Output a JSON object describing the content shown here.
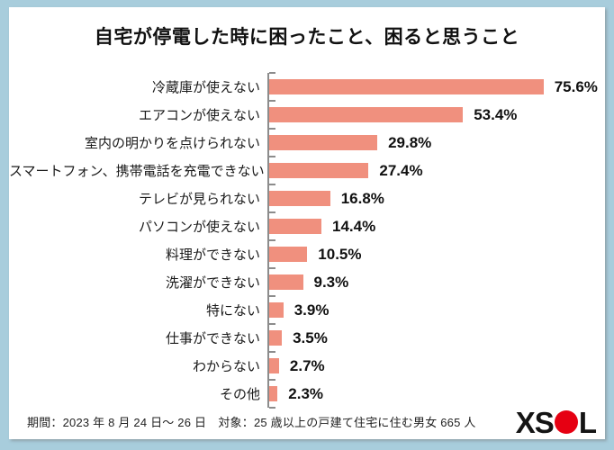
{
  "title": "自宅が停電した時に困ったこと、困ると思うこと",
  "chart_data": {
    "type": "bar",
    "orientation": "horizontal",
    "title": "自宅が停電した時に困ったこと、困ると思うこと",
    "categories": [
      "冷蔵庫が使えない",
      "エアコンが使えない",
      "室内の明かりを点けられない",
      "スマートフォン、携帯電話を充電できない",
      "テレビが見られない",
      "パソコンが使えない",
      "料理ができない",
      "洗濯ができない",
      "特にない",
      "仕事ができない",
      "わからない",
      "その他"
    ],
    "values": [
      75.6,
      53.4,
      29.8,
      27.4,
      16.8,
      14.4,
      10.5,
      9.3,
      3.9,
      3.5,
      2.7,
      2.3
    ],
    "value_labels": [
      "75.6%",
      "53.4%",
      "29.8%",
      "27.4%",
      "16.8%",
      "14.4%",
      "10.5%",
      "9.3%",
      "3.9%",
      "3.5%",
      "2.7%",
      "2.3%"
    ],
    "unit": "%",
    "xlim": [
      0,
      90
    ],
    "grid": false,
    "legend": false,
    "bar_color": "#f0907e",
    "axis_color": "#8c8c8c"
  },
  "footer": {
    "note": "期間：2023 年 8 月 24 日～ 26 日　対象：25 歳以上の戸建て住宅に住む男女 665 人"
  },
  "logo": {
    "left": "XS",
    "right": "L",
    "circle_color": "#e60012"
  },
  "colors": {
    "frame_background": "#a8cddc",
    "card_background": "#ffffff",
    "text": "#111111"
  }
}
